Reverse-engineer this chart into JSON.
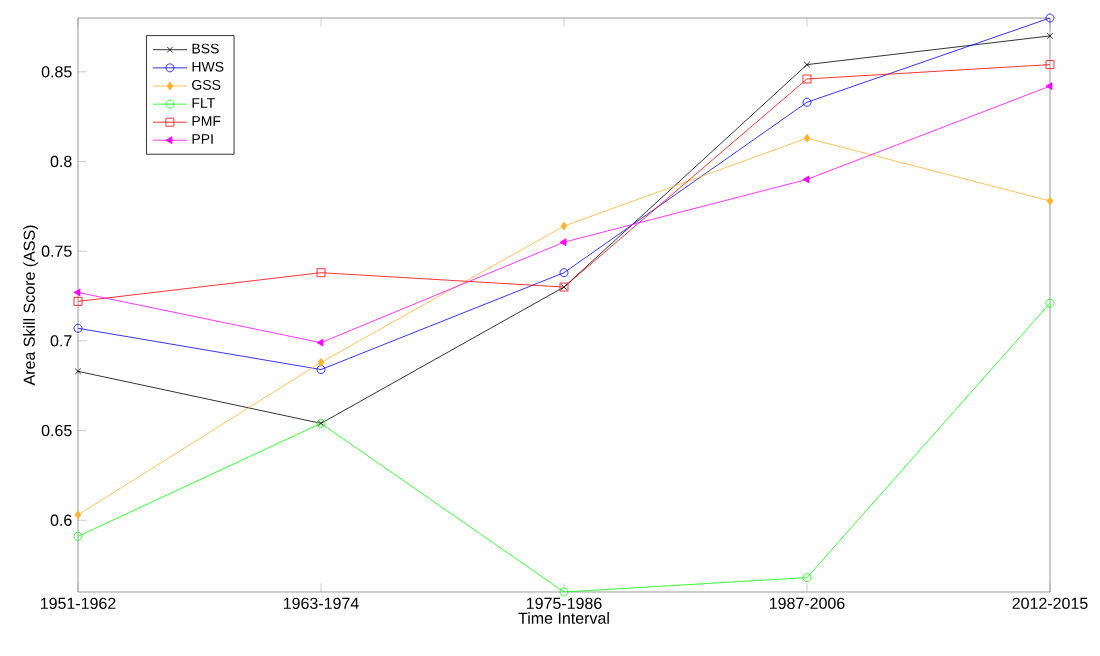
{
  "chart_data": {
    "type": "line",
    "xlabel": "Time Interval",
    "ylabel": "Area Skill Score (ASS)",
    "categories": [
      "1951-1962",
      "1963-1974",
      "1975-1986",
      "1987-2006",
      "2012-2015"
    ],
    "series": [
      {
        "name": "BSS",
        "color": "#000000",
        "marker": "cross",
        "values": [
          0.683,
          0.654,
          0.73,
          0.854,
          0.87
        ]
      },
      {
        "name": "HWS",
        "color": "#0000ff",
        "marker": "circle",
        "values": [
          0.707,
          0.684,
          0.738,
          0.833,
          0.88
        ]
      },
      {
        "name": "GSS",
        "color": "#ffb330",
        "marker": "diamond",
        "values": [
          0.603,
          0.688,
          0.764,
          0.813,
          0.778
        ]
      },
      {
        "name": "FLT",
        "color": "#00ff00",
        "marker": "circle",
        "values": [
          0.591,
          0.654,
          0.56,
          0.568,
          0.721
        ]
      },
      {
        "name": "PMF",
        "color": "#ff0000",
        "marker": "square",
        "values": [
          0.722,
          0.738,
          0.73,
          0.846,
          0.854
        ]
      },
      {
        "name": "PPI",
        "color": "#ff00ff",
        "marker": "triangle",
        "values": [
          0.727,
          0.699,
          0.755,
          0.79,
          0.842
        ]
      }
    ],
    "ylim": [
      0.56,
      0.88
    ],
    "yticks": [
      0.6,
      0.65,
      0.7,
      0.75,
      0.8,
      0.85
    ],
    "grid": false,
    "legend": "top left",
    "line_style": "solid"
  }
}
